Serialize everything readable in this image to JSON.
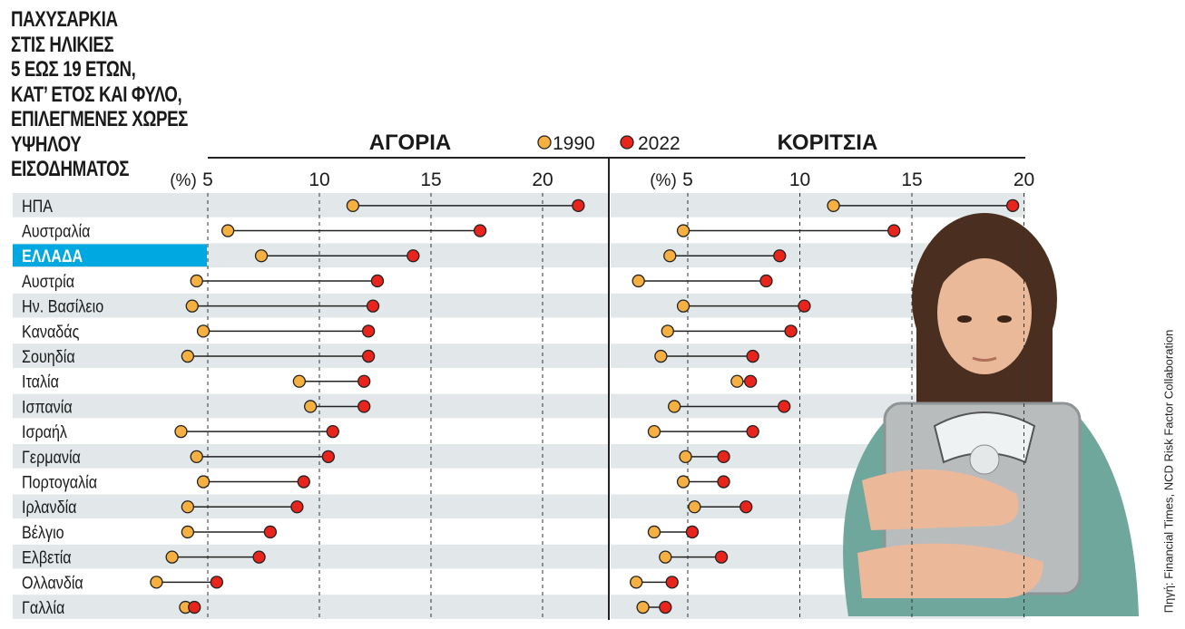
{
  "title_lines": [
    "ΠΑΧΥΣΑΡΚΙΑ",
    "ΣΤΙΣ ΗΛΙΚΙΕΣ",
    "5 ΕΩΣ 19 ΕΤΩΝ,",
    "ΚΑΤ’ ΕΤΟΣ ΚΑΙ ΦΥΛΟ,",
    "ΕΠΙΛΕΓΜΕΝΕΣ ΧΩΡΕΣ",
    "ΥΨΗΛΟΥ",
    "ΕΙΣΟΔΗΜΑΤΟΣ"
  ],
  "source": "Πηγή: Financial Times, NCD Risk Factor Collaboration",
  "colors": {
    "y1990": "#f5b041",
    "y2022": "#e8241c",
    "highlight": "#00a8e1",
    "stripe": "#e2e8ea"
  },
  "chart_data": [
    {
      "type": "dumbbell",
      "title": "ΑΓΟΡΙΑ",
      "unit_label": "(%)",
      "ticks": [
        5,
        10,
        15,
        20
      ],
      "xlim": [
        5,
        22
      ],
      "legend": [
        "1990",
        "2022"
      ],
      "categories": [
        "ΗΠΑ",
        "Αυστραλία",
        "ΕΛΛΑΔΑ",
        "Αυστρία",
        "Ην. Βασίλειο",
        "Καναδάς",
        "Σουηδία",
        "Ιταλία",
        "Ισπανία",
        "Ισραήλ",
        "Γερμανία",
        "Πορτογαλία",
        "Ιρλανδία",
        "Βέλγιο",
        "Ελβετία",
        "Ολλανδία",
        "Γαλλία"
      ],
      "series": [
        {
          "name": "1990",
          "values": [
            11.5,
            5.9,
            7.4,
            4.5,
            4.3,
            4.8,
            4.1,
            9.1,
            9.6,
            3.8,
            4.5,
            4.8,
            4.1,
            4.1,
            3.4,
            2.7,
            4.0
          ]
        },
        {
          "name": "2022",
          "values": [
            21.6,
            17.2,
            14.2,
            12.6,
            12.4,
            12.2,
            12.2,
            12.0,
            12.0,
            10.6,
            10.4,
            9.3,
            9.0,
            7.8,
            7.3,
            5.4,
            4.4
          ]
        }
      ]
    },
    {
      "type": "dumbbell",
      "title": "ΚΟΡΙΤΣΙΑ",
      "unit_label": "(%)",
      "ticks": [
        5,
        10,
        15,
        20
      ],
      "xlim": [
        5,
        20
      ],
      "legend": [
        "1990",
        "2022"
      ],
      "categories": [
        "ΗΠΑ",
        "Αυστραλία",
        "ΕΛΛΑΔΑ",
        "Αυστρία",
        "Ην. Βασίλειο",
        "Καναδάς",
        "Σουηδία",
        "Ιταλία",
        "Ισπανία",
        "Ισραήλ",
        "Γερμανία",
        "Πορτογαλία",
        "Ιρλανδία",
        "Βέλγιο",
        "Ελβετία",
        "Ολλανδία",
        "Γαλλία"
      ],
      "series": [
        {
          "name": "1990",
          "values": [
            11.5,
            4.8,
            4.2,
            2.8,
            4.8,
            4.1,
            3.8,
            7.2,
            4.4,
            3.5,
            4.9,
            4.8,
            5.3,
            3.5,
            4.0,
            2.7,
            3.0
          ]
        },
        {
          "name": "2022",
          "values": [
            19.5,
            14.2,
            9.1,
            8.5,
            10.2,
            9.6,
            7.9,
            7.8,
            9.3,
            7.9,
            6.6,
            6.6,
            7.6,
            5.2,
            6.5,
            4.3,
            4.0
          ]
        }
      ]
    }
  ]
}
